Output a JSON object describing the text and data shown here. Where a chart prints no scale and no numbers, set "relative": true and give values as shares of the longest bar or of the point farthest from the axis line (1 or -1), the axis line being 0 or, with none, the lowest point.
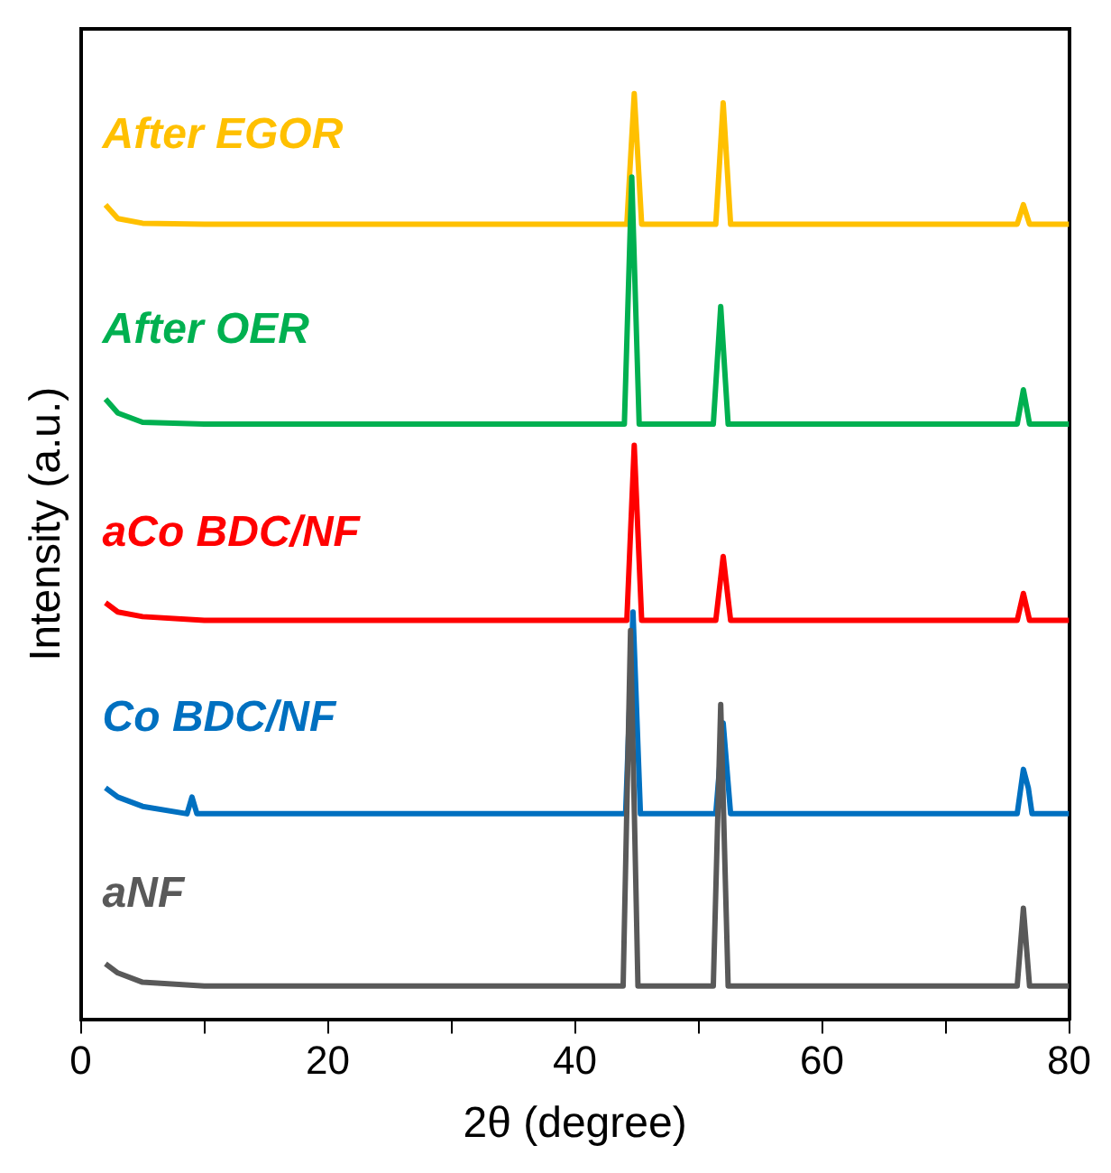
{
  "chart_data": {
    "type": "line",
    "relative": true,
    "xlabel": "2θ (degree)",
    "ylabel": "Intensity (a.u.)",
    "xlim": [
      0,
      80
    ],
    "xticks": [
      0,
      {
        "value": 10,
        "label": null
      },
      20,
      {
        "value": 30,
        "label": null
      },
      40,
      {
        "value": 50,
        "label": null
      },
      60,
      {
        "value": 70,
        "label": null
      },
      80
    ],
    "grid": false,
    "legend": false,
    "marker": "none",
    "line_style": "solid",
    "series": [
      {
        "name": "aNF",
        "color": "#595959",
        "x": [
          2,
          3,
          5,
          10,
          20,
          30,
          40,
          43.9,
          44.5,
          45.1,
          51.2,
          51.8,
          52.4,
          60,
          75.8,
          76.3,
          76.8,
          80
        ],
        "values": [
          0.06,
          0.05,
          0.04,
          0.036,
          0.036,
          0.036,
          0.036,
          0.036,
          0.42,
          0.036,
          0.036,
          0.34,
          0.036,
          0.036,
          0.036,
          0.12,
          0.036,
          0.036
        ]
      },
      {
        "name": "Co BDC/NF",
        "color": "#0070c0",
        "x": [
          2,
          3,
          5,
          8.6,
          9,
          9.4,
          20,
          30,
          40,
          44.1,
          44.7,
          45.3,
          51.4,
          52,
          52.6,
          60,
          75.8,
          76.3,
          76.7,
          77,
          80
        ],
        "values": [
          0.25,
          0.24,
          0.23,
          0.222,
          0.24,
          0.222,
          0.222,
          0.222,
          0.222,
          0.222,
          0.44,
          0.222,
          0.222,
          0.32,
          0.222,
          0.222,
          0.222,
          0.27,
          0.25,
          0.222,
          0.222
        ]
      },
      {
        "name": "aCo BDC/NF",
        "color": "#ff0000",
        "x": [
          2,
          3,
          5,
          10,
          20,
          30,
          40,
          44.2,
          44.8,
          45.4,
          51.4,
          52,
          52.6,
          60,
          75.8,
          76.3,
          76.8,
          80
        ],
        "values": [
          0.45,
          0.44,
          0.435,
          0.431,
          0.431,
          0.431,
          0.431,
          0.431,
          0.62,
          0.431,
          0.431,
          0.5,
          0.431,
          0.431,
          0.431,
          0.46,
          0.431,
          0.431
        ]
      },
      {
        "name": "After OER",
        "color": "#00b050",
        "x": [
          2,
          3,
          5,
          10,
          20,
          30,
          40,
          44,
          44.6,
          45.2,
          51.2,
          51.8,
          52.4,
          60,
          75.8,
          76.3,
          76.8,
          80
        ],
        "values": [
          0.67,
          0.655,
          0.645,
          0.643,
          0.643,
          0.643,
          0.643,
          0.643,
          0.91,
          0.643,
          0.643,
          0.77,
          0.643,
          0.643,
          0.643,
          0.68,
          0.643,
          0.643
        ]
      },
      {
        "name": "After EGOR",
        "color": "#ffc000",
        "x": [
          2,
          3,
          5,
          10,
          20,
          30,
          40,
          44.2,
          44.8,
          45.4,
          51.4,
          52,
          52.6,
          60,
          75.8,
          76.3,
          76.8,
          80
        ],
        "values": [
          0.88,
          0.865,
          0.86,
          0.859,
          0.859,
          0.859,
          0.859,
          0.859,
          1,
          0.859,
          0.859,
          0.99,
          0.859,
          0.859,
          0.859,
          0.88,
          0.859,
          0.859
        ]
      }
    ]
  }
}
